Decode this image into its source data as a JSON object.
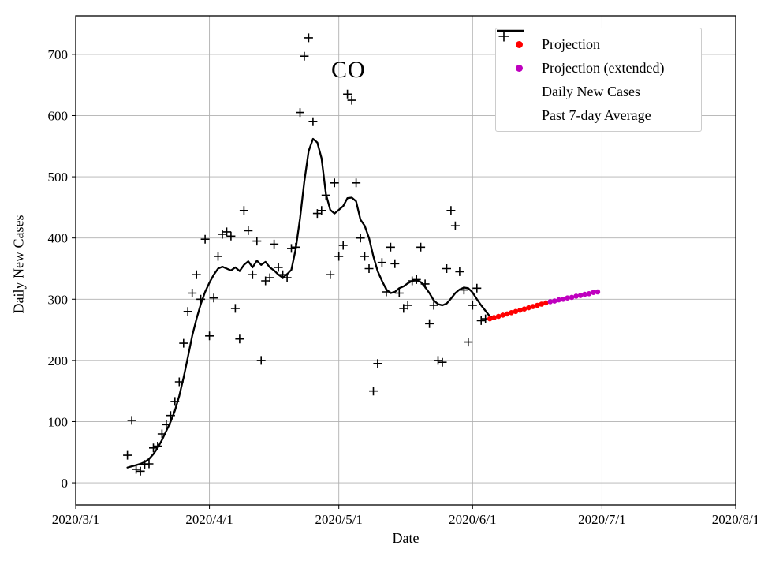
{
  "figure": {
    "background": "#ffffff"
  },
  "chart_data": {
    "type": "line",
    "title": "CO",
    "xlabel": "Date",
    "ylabel": "Daily New Cases",
    "x_ticks": [
      "2020/3/1",
      "2020/4/1",
      "2020/5/1",
      "2020/6/1",
      "2020/7/1",
      "2020/8/1"
    ],
    "y_ticks": [
      0,
      100,
      200,
      300,
      400,
      500,
      600,
      700
    ],
    "xlim": [
      "2020/3/1",
      "2020/8/1"
    ],
    "ylim": [
      -36,
      763
    ],
    "grid": true,
    "grid_color": "#b0b0b0",
    "legend_position": "upper right",
    "series": [
      {
        "name": "Daily New Cases",
        "type": "scatter-plus",
        "color": "#000000",
        "points": [
          [
            "2020/3/13",
            45
          ],
          [
            "2020/3/14",
            102
          ],
          [
            "2020/3/15",
            22
          ],
          [
            "2020/3/16",
            19
          ],
          [
            "2020/3/17",
            30
          ],
          [
            "2020/3/18",
            31
          ],
          [
            "2020/3/19",
            57
          ],
          [
            "2020/3/20",
            60
          ],
          [
            "2020/3/21",
            80
          ],
          [
            "2020/3/22",
            95
          ],
          [
            "2020/3/23",
            110
          ],
          [
            "2020/3/24",
            133
          ],
          [
            "2020/3/25",
            165
          ],
          [
            "2020/3/26",
            228
          ],
          [
            "2020/3/27",
            280
          ],
          [
            "2020/3/28",
            310
          ],
          [
            "2020/3/29",
            340
          ],
          [
            "2020/3/30",
            300
          ],
          [
            "2020/3/31",
            398
          ],
          [
            "2020/4/1",
            240
          ],
          [
            "2020/4/2",
            302
          ],
          [
            "2020/4/3",
            370
          ],
          [
            "2020/4/4",
            406
          ],
          [
            "2020/4/5",
            410
          ],
          [
            "2020/4/6",
            403
          ],
          [
            "2020/4/7",
            285
          ],
          [
            "2020/4/8",
            235
          ],
          [
            "2020/4/9",
            445
          ],
          [
            "2020/4/10",
            412
          ],
          [
            "2020/4/11",
            340
          ],
          [
            "2020/4/12",
            395
          ],
          [
            "2020/4/13",
            200
          ],
          [
            "2020/4/14",
            330
          ],
          [
            "2020/4/15",
            335
          ],
          [
            "2020/4/16",
            390
          ],
          [
            "2020/4/17",
            352
          ],
          [
            "2020/4/18",
            340
          ],
          [
            "2020/4/19",
            335
          ],
          [
            "2020/4/20",
            383
          ],
          [
            "2020/4/21",
            385
          ],
          [
            "2020/4/22",
            605
          ],
          [
            "2020/4/23",
            697
          ],
          [
            "2020/4/24",
            727
          ],
          [
            "2020/4/25",
            590
          ],
          [
            "2020/4/26",
            440
          ],
          [
            "2020/4/27",
            445
          ],
          [
            "2020/4/28",
            470
          ],
          [
            "2020/4/29",
            340
          ],
          [
            "2020/4/30",
            490
          ],
          [
            "2020/5/1",
            370
          ],
          [
            "2020/5/2",
            388
          ],
          [
            "2020/5/3",
            635
          ],
          [
            "2020/5/4",
            625
          ],
          [
            "2020/5/5",
            490
          ],
          [
            "2020/5/6",
            400
          ],
          [
            "2020/5/7",
            370
          ],
          [
            "2020/5/8",
            350
          ],
          [
            "2020/5/9",
            150
          ],
          [
            "2020/5/10",
            195
          ],
          [
            "2020/5/11",
            360
          ],
          [
            "2020/5/12",
            312
          ],
          [
            "2020/5/13",
            385
          ],
          [
            "2020/5/14",
            358
          ],
          [
            "2020/5/15",
            310
          ],
          [
            "2020/5/16",
            285
          ],
          [
            "2020/5/17",
            290
          ],
          [
            "2020/5/18",
            330
          ],
          [
            "2020/5/19",
            332
          ],
          [
            "2020/5/20",
            385
          ],
          [
            "2020/5/21",
            325
          ],
          [
            "2020/5/22",
            260
          ],
          [
            "2020/5/23",
            290
          ],
          [
            "2020/5/24",
            200
          ],
          [
            "2020/5/25",
            197
          ],
          [
            "2020/5/26",
            350
          ],
          [
            "2020/5/27",
            445
          ],
          [
            "2020/5/28",
            420
          ],
          [
            "2020/5/29",
            345
          ],
          [
            "2020/5/30",
            315
          ],
          [
            "2020/5/31",
            230
          ],
          [
            "2020/6/1",
            290
          ],
          [
            "2020/6/2",
            318
          ],
          [
            "2020/6/3",
            265
          ],
          [
            "2020/6/4",
            268
          ]
        ]
      },
      {
        "name": "Past 7-day Average",
        "type": "line",
        "color": "#000000",
        "points": [
          [
            "2020/3/13",
            25
          ],
          [
            "2020/3/14",
            27
          ],
          [
            "2020/3/15",
            29
          ],
          [
            "2020/3/16",
            31
          ],
          [
            "2020/3/17",
            34
          ],
          [
            "2020/3/18",
            39
          ],
          [
            "2020/3/19",
            47
          ],
          [
            "2020/3/20",
            57
          ],
          [
            "2020/3/21",
            70
          ],
          [
            "2020/3/22",
            85
          ],
          [
            "2020/3/23",
            100
          ],
          [
            "2020/3/24",
            118
          ],
          [
            "2020/3/25",
            142
          ],
          [
            "2020/3/26",
            172
          ],
          [
            "2020/3/27",
            205
          ],
          [
            "2020/3/28",
            240
          ],
          [
            "2020/3/29",
            268
          ],
          [
            "2020/3/30",
            292
          ],
          [
            "2020/3/31",
            312
          ],
          [
            "2020/4/1",
            327
          ],
          [
            "2020/4/2",
            340
          ],
          [
            "2020/4/3",
            350
          ],
          [
            "2020/4/4",
            353
          ],
          [
            "2020/4/5",
            350
          ],
          [
            "2020/4/6",
            347
          ],
          [
            "2020/4/7",
            352
          ],
          [
            "2020/4/8",
            346
          ],
          [
            "2020/4/9",
            356
          ],
          [
            "2020/4/10",
            362
          ],
          [
            "2020/4/11",
            352
          ],
          [
            "2020/4/12",
            363
          ],
          [
            "2020/4/13",
            356
          ],
          [
            "2020/4/14",
            361
          ],
          [
            "2020/4/15",
            352
          ],
          [
            "2020/4/16",
            347
          ],
          [
            "2020/4/17",
            340
          ],
          [
            "2020/4/18",
            335
          ],
          [
            "2020/4/19",
            341
          ],
          [
            "2020/4/20",
            348
          ],
          [
            "2020/4/21",
            382
          ],
          [
            "2020/4/22",
            432
          ],
          [
            "2020/4/23",
            492
          ],
          [
            "2020/4/24",
            542
          ],
          [
            "2020/4/25",
            562
          ],
          [
            "2020/4/26",
            556
          ],
          [
            "2020/4/27",
            530
          ],
          [
            "2020/4/28",
            472
          ],
          [
            "2020/4/29",
            446
          ],
          [
            "2020/4/30",
            440
          ],
          [
            "2020/5/1",
            446
          ],
          [
            "2020/5/2",
            452
          ],
          [
            "2020/5/3",
            465
          ],
          [
            "2020/5/4",
            466
          ],
          [
            "2020/5/5",
            460
          ],
          [
            "2020/5/6",
            430
          ],
          [
            "2020/5/7",
            420
          ],
          [
            "2020/5/8",
            400
          ],
          [
            "2020/5/9",
            370
          ],
          [
            "2020/5/10",
            346
          ],
          [
            "2020/5/11",
            330
          ],
          [
            "2020/5/12",
            316
          ],
          [
            "2020/5/13",
            310
          ],
          [
            "2020/5/14",
            312
          ],
          [
            "2020/5/15",
            318
          ],
          [
            "2020/5/16",
            321
          ],
          [
            "2020/5/17",
            326
          ],
          [
            "2020/5/18",
            330
          ],
          [
            "2020/5/19",
            331
          ],
          [
            "2020/5/20",
            328
          ],
          [
            "2020/5/21",
            320
          ],
          [
            "2020/5/22",
            310
          ],
          [
            "2020/5/23",
            298
          ],
          [
            "2020/5/24",
            292
          ],
          [
            "2020/5/25",
            290
          ],
          [
            "2020/5/26",
            293
          ],
          [
            "2020/5/27",
            301
          ],
          [
            "2020/5/28",
            310
          ],
          [
            "2020/5/29",
            316
          ],
          [
            "2020/5/30",
            319
          ],
          [
            "2020/5/31",
            318
          ],
          [
            "2020/6/1",
            311
          ],
          [
            "2020/6/2",
            300
          ],
          [
            "2020/6/3",
            290
          ],
          [
            "2020/6/4",
            281
          ],
          [
            "2020/6/5",
            272
          ],
          [
            "2020/6/6",
            268
          ]
        ]
      },
      {
        "name": "Projection",
        "type": "scatter-dot",
        "color": "#ff0000",
        "points": [
          [
            "2020/6/5",
            268
          ],
          [
            "2020/6/6",
            270
          ],
          [
            "2020/6/7",
            272
          ],
          [
            "2020/6/8",
            274
          ],
          [
            "2020/6/9",
            276
          ],
          [
            "2020/6/10",
            278
          ],
          [
            "2020/6/11",
            280
          ],
          [
            "2020/6/12",
            282
          ],
          [
            "2020/6/13",
            284
          ],
          [
            "2020/6/14",
            286
          ],
          [
            "2020/6/15",
            288
          ],
          [
            "2020/6/16",
            290
          ],
          [
            "2020/6/17",
            292
          ],
          [
            "2020/6/18",
            294
          ]
        ]
      },
      {
        "name": "Projection (extended)",
        "type": "scatter-dot",
        "color": "#bf00bf",
        "points": [
          [
            "2020/6/19",
            296
          ],
          [
            "2020/6/20",
            297
          ],
          [
            "2020/6/21",
            299
          ],
          [
            "2020/6/22",
            300
          ],
          [
            "2020/6/23",
            302
          ],
          [
            "2020/6/24",
            303
          ],
          [
            "2020/6/25",
            305
          ],
          [
            "2020/6/26",
            306
          ],
          [
            "2020/6/27",
            308
          ],
          [
            "2020/6/28",
            309
          ],
          [
            "2020/6/29",
            311
          ],
          [
            "2020/6/30",
            312
          ]
        ]
      }
    ]
  },
  "legend": {
    "items": [
      {
        "label": "Projection",
        "marker": "dot",
        "color": "#ff0000"
      },
      {
        "label": "Projection (extended)",
        "marker": "dot",
        "color": "#bf00bf"
      },
      {
        "label": "Daily New Cases",
        "marker": "plus",
        "color": "#000000"
      },
      {
        "label": "Past 7-day Average",
        "marker": "line",
        "color": "#000000"
      }
    ]
  }
}
